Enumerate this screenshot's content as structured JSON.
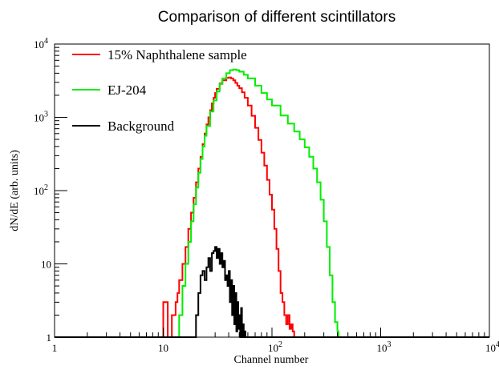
{
  "chart_data": {
    "type": "line",
    "title": "Comparison of different scintillators",
    "xlabel": "Channel number",
    "ylabel": "dN/dE (arb. units)",
    "x_scale": "log",
    "y_scale": "log",
    "xlim": [
      1,
      10000
    ],
    "ylim": [
      1,
      10000
    ],
    "grid": false,
    "legend_position": "top-left",
    "x_tick_labels": [
      {
        "value": 1,
        "base": "1",
        "exp": ""
      },
      {
        "value": 10,
        "base": "10",
        "exp": ""
      },
      {
        "value": 100,
        "base": "10",
        "exp": "2"
      },
      {
        "value": 1000,
        "base": "10",
        "exp": "3"
      },
      {
        "value": 10000,
        "base": "10",
        "exp": "4"
      }
    ],
    "y_tick_labels": [
      {
        "value": 1,
        "base": "1",
        "exp": ""
      },
      {
        "value": 10,
        "base": "10",
        "exp": ""
      },
      {
        "value": 100,
        "base": "10",
        "exp": "2"
      },
      {
        "value": 1000,
        "base": "10",
        "exp": "3"
      },
      {
        "value": 10000,
        "base": "10",
        "exp": "4"
      }
    ],
    "series": [
      {
        "name": "15% Naphthalene sample",
        "color": "#ff0000",
        "x": [
          1,
          10,
          10.5,
          11,
          11.5,
          12,
          12.5,
          13,
          13.5,
          14,
          15,
          16,
          17,
          18,
          19,
          20,
          21,
          22,
          23,
          24,
          25,
          26,
          27,
          28,
          29,
          30,
          31,
          33,
          35,
          38,
          40,
          42,
          44,
          46,
          48,
          50,
          53,
          56,
          60,
          65,
          70,
          75,
          80,
          85,
          90,
          95,
          100,
          105,
          110,
          115,
          120,
          125,
          130,
          135,
          140,
          145,
          150,
          155,
          160,
          10000
        ],
        "values": [
          1,
          3,
          3,
          1,
          1,
          2,
          2,
          3,
          4,
          6,
          10,
          17,
          30,
          50,
          80,
          130,
          200,
          290,
          430,
          600,
          800,
          1000,
          1250,
          1550,
          1850,
          2150,
          2450,
          2900,
          3200,
          3450,
          3500,
          3400,
          3200,
          2950,
          2700,
          2500,
          2200,
          1850,
          1450,
          1050,
          720,
          490,
          330,
          220,
          140,
          88,
          55,
          30,
          16,
          8,
          4,
          3,
          2,
          1.5,
          2,
          1.3,
          1.5,
          1.2,
          1,
          1
        ]
      },
      {
        "name": "EJ-204",
        "color": "#00ee00",
        "x": [
          1,
          13.5,
          14,
          15,
          16,
          17,
          18,
          19,
          20,
          21,
          22,
          23,
          24,
          25,
          27,
          29,
          31,
          33,
          35,
          38,
          41,
          44,
          47,
          50,
          55,
          60,
          70,
          80,
          90,
          100,
          120,
          140,
          160,
          180,
          200,
          220,
          240,
          260,
          280,
          300,
          320,
          340,
          360,
          380,
          400,
          410,
          10000
        ],
        "values": [
          1,
          1,
          2,
          5,
          10,
          20,
          38,
          65,
          110,
          175,
          270,
          400,
          560,
          760,
          1200,
          1700,
          2250,
          2850,
          3400,
          4000,
          4400,
          4500,
          4400,
          4200,
          3800,
          3400,
          2700,
          2150,
          1750,
          1450,
          1060,
          820,
          640,
          500,
          390,
          290,
          200,
          130,
          75,
          38,
          17,
          7,
          3,
          1.6,
          1.2,
          1,
          1
        ]
      },
      {
        "name": "Background",
        "color": "#000000",
        "x": [
          1,
          19,
          20,
          21,
          22,
          23,
          24,
          25,
          26,
          27,
          28,
          29,
          30,
          31,
          32,
          33,
          34,
          35,
          36,
          37,
          38,
          39,
          40,
          41,
          42,
          43,
          44,
          45,
          46,
          47,
          48,
          49,
          50,
          51,
          52,
          53,
          54,
          55,
          56,
          57,
          10000
        ],
        "values": [
          1,
          1,
          2,
          4,
          7,
          8,
          6,
          9,
          12,
          8,
          14,
          15,
          17,
          12,
          16,
          10,
          14,
          9,
          11,
          6,
          7,
          5,
          8,
          3,
          6,
          2,
          5,
          1.5,
          4,
          1.2,
          3,
          1.3,
          2,
          1,
          2.5,
          1,
          1.5,
          1,
          1.2,
          1,
          1
        ]
      }
    ]
  }
}
